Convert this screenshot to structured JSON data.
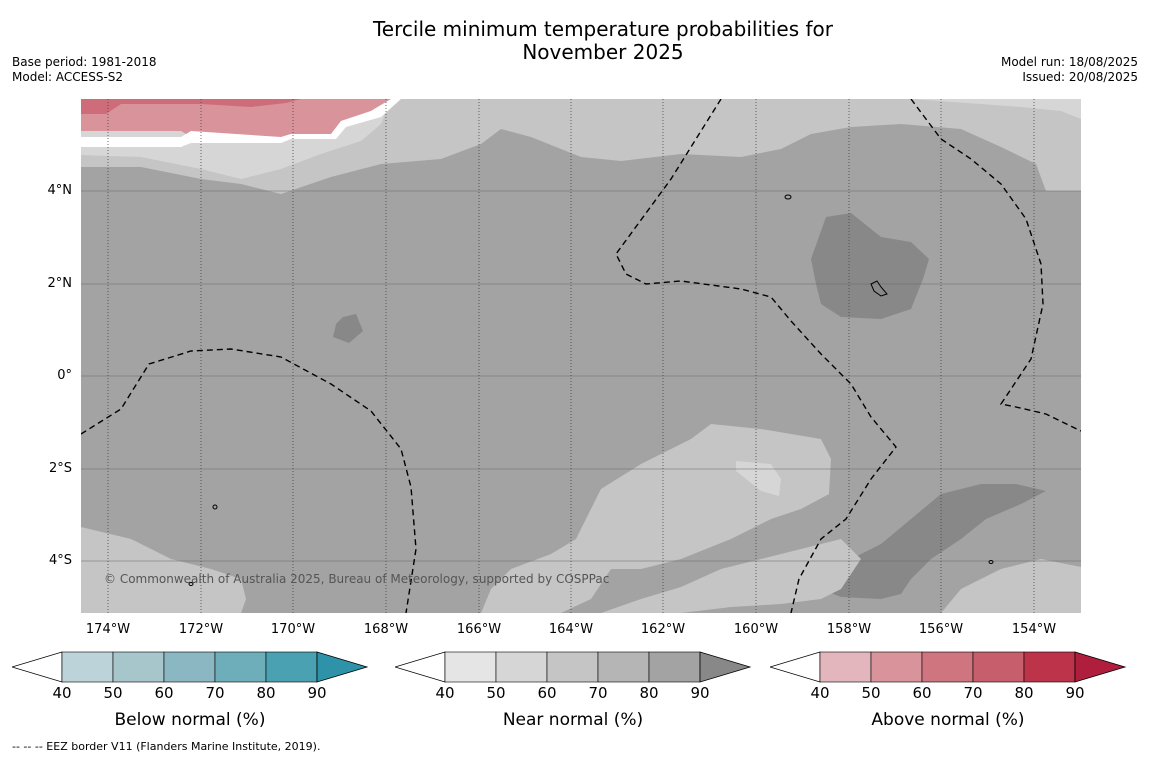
{
  "header": {
    "title_line1": "Tercile minimum temperature probabilities for",
    "title_line2": "November 2025",
    "base_period": "Base period: 1981-2018",
    "model": "Model: ACCESS-S2",
    "model_run": "Model run: 18/08/2025",
    "issued": "Issued: 20/08/2025"
  },
  "map": {
    "lat_labels": [
      "4°N",
      "2°N",
      "0°",
      "2°S",
      "4°S"
    ],
    "lon_labels": [
      "174°W",
      "172°W",
      "170°W",
      "168°W",
      "166°W",
      "164°W",
      "162°W",
      "160°W",
      "158°W",
      "156°W",
      "154°W"
    ],
    "copyright": "© Commonwealth of Australia 2025, Bureau of Meteorology, supported by COSPPac",
    "colors": {
      "ocean_base": "#a3a3a3",
      "near_50": "#d6d6d6",
      "near_60": "#c5c5c5",
      "near_80": "#a3a3a3",
      "near_90": "#888888",
      "above_50": "#d9939b",
      "above_60": "#ce6c79",
      "white": "#ffffff"
    }
  },
  "colorbars": [
    {
      "title": "Below normal (%)",
      "ticks": [
        "40",
        "50",
        "60",
        "70",
        "80",
        "90"
      ],
      "colors": [
        "#ffffff",
        "#bcd3da",
        "#a6c6cc",
        "#8bb7c3",
        "#6eaebb",
        "#4aa1b1",
        "#2e93a8"
      ]
    },
    {
      "title": "Near normal (%)",
      "ticks": [
        "40",
        "50",
        "60",
        "70",
        "80",
        "90"
      ],
      "colors": [
        "#ffffff",
        "#e5e5e5",
        "#d6d6d6",
        "#c5c5c5",
        "#b5b5b5",
        "#a3a3a3",
        "#888888"
      ]
    },
    {
      "title": "Above normal (%)",
      "ticks": [
        "40",
        "50",
        "60",
        "70",
        "80",
        "90"
      ],
      "colors": [
        "#ffffff",
        "#e2b6bc",
        "#d9939b",
        "#ce7580",
        "#c65e6b",
        "#bd3349",
        "#b01e3e"
      ]
    }
  ],
  "footer": "--  --  -- EEZ border V11 (Flanders Marine Institute, 2019)."
}
